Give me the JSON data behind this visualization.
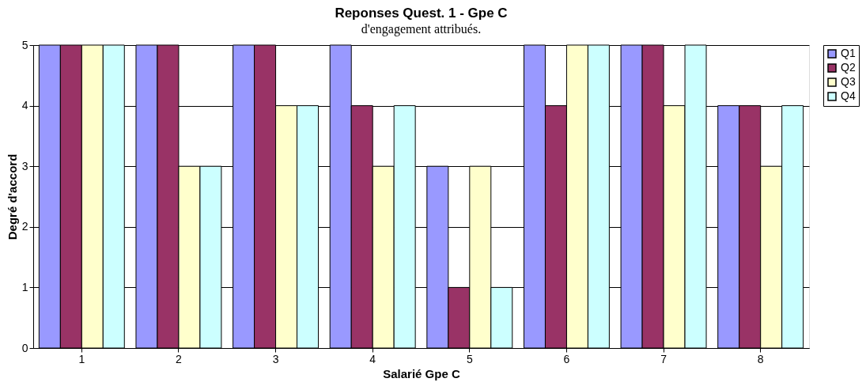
{
  "chart_data": {
    "type": "bar",
    "title": "Reponses Quest. 1 - Gpe C",
    "xlabel": "Salarié Gpe C",
    "ylabel": "Degré d'accord",
    "annotations": [
      "d'engagement attribués."
    ],
    "categories": [
      "1",
      "2",
      "3",
      "4",
      "5",
      "6",
      "7",
      "8"
    ],
    "series": [
      {
        "name": "Q1",
        "color": "#9999ff",
        "values": [
          5,
          5,
          5,
          5,
          3,
          5,
          5,
          4
        ]
      },
      {
        "name": "Q2",
        "color": "#993366",
        "values": [
          5,
          5,
          5,
          4,
          1,
          4,
          5,
          4
        ]
      },
      {
        "name": "Q3",
        "color": "#ffffcc",
        "values": [
          5,
          3,
          4,
          3,
          3,
          5,
          4,
          3
        ]
      },
      {
        "name": "Q4",
        "color": "#ccffff",
        "values": [
          5,
          3,
          4,
          4,
          1,
          5,
          5,
          4
        ]
      }
    ],
    "ylim": [
      0,
      5
    ],
    "yticks": [
      0,
      1,
      2,
      3,
      4,
      5
    ],
    "grid": "y",
    "legend": "right"
  }
}
